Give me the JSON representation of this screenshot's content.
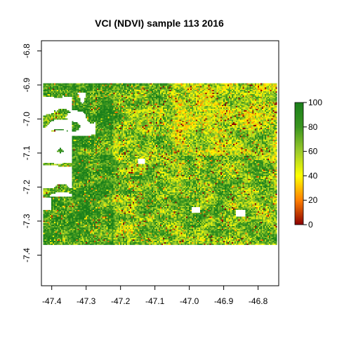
{
  "chart_data": {
    "type": "heatmap",
    "title": "VCI (NDVI) sample 113 2016",
    "xlabel": "",
    "ylabel": "",
    "x_ticks": [
      "-47.4",
      "-47.3",
      "-47.2",
      "-47.1",
      "-47.0",
      "-46.9",
      "-46.8"
    ],
    "y_ticks": [
      "-6.8",
      "-6.9",
      "-7.0",
      "-7.1",
      "-7.2",
      "-7.3",
      "-7.4"
    ],
    "xlim": [
      -47.43,
      -46.74
    ],
    "ylim": [
      -7.49,
      -6.77
    ],
    "raster_extent": {
      "x": [
        -47.425,
        -46.745
      ],
      "y": [
        -7.37,
        -6.895
      ]
    },
    "value_range": [
      0,
      100
    ],
    "legend": {
      "placement": "right",
      "ticks": [
        "100",
        "80",
        "60",
        "40",
        "20",
        "0"
      ]
    },
    "colors": {
      "high": "#1a7f1a",
      "upper_mid": "#6fb51f",
      "mid": "#ffff00",
      "lower_mid": "#ff7f00",
      "low": "#8b0000",
      "missing": "#ffffff"
    }
  }
}
